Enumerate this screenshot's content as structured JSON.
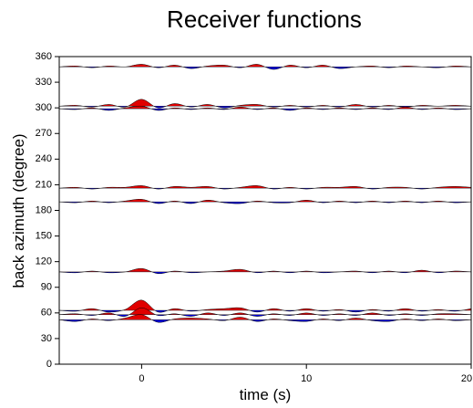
{
  "chart_data": {
    "type": "wiggle",
    "title": "Receiver functions",
    "xlabel": "time (s)",
    "ylabel": "back azimuth (degree)",
    "xlim": [
      -5,
      20
    ],
    "xticks": [
      0,
      10,
      20
    ],
    "ylim": [
      0,
      360
    ],
    "yticks": [
      0,
      30,
      60,
      90,
      120,
      150,
      180,
      210,
      240,
      270,
      300,
      330,
      360
    ],
    "positive_color": "#e00000",
    "negative_color": "#0000e0",
    "x": [
      -5,
      -4,
      -3,
      -2,
      -1,
      0,
      1,
      2,
      3,
      4,
      5,
      6,
      7,
      8,
      9,
      10,
      11,
      12,
      13,
      14,
      15,
      16,
      17,
      18,
      19,
      20
    ],
    "traces": [
      {
        "baz": 348,
        "values": [
          0,
          1,
          -1,
          1,
          0,
          3,
          -1,
          2,
          -2,
          1,
          2,
          -1,
          3,
          -3,
          2,
          -1,
          2,
          -2,
          0,
          1,
          -1,
          1,
          0,
          -1,
          1,
          0
        ]
      },
      {
        "baz": 302,
        "values": [
          0,
          1,
          -1,
          2,
          -1,
          8,
          -2,
          3,
          -1,
          2,
          -2,
          1,
          2,
          -1,
          1,
          -1,
          1,
          -1,
          2,
          -1,
          1,
          -1,
          1,
          0,
          1,
          0
        ]
      },
      {
        "baz": 299,
        "values": [
          0,
          -1,
          1,
          -2,
          1,
          3,
          -2,
          1,
          -1,
          1,
          -1,
          2,
          -1,
          1,
          -2,
          1,
          -1,
          1,
          -1,
          1,
          -1,
          2,
          -1,
          1,
          -1,
          0
        ]
      },
      {
        "baz": 206,
        "values": [
          0,
          1,
          -1,
          1,
          1,
          3,
          -1,
          2,
          1,
          2,
          -1,
          1,
          3,
          -1,
          1,
          -1,
          1,
          1,
          2,
          -1,
          1,
          1,
          -1,
          1,
          2,
          1
        ]
      },
      {
        "baz": 190,
        "values": [
          0,
          -1,
          1,
          -1,
          1,
          3,
          -2,
          1,
          -2,
          2,
          -1,
          -2,
          1,
          -1,
          -1,
          2,
          -1,
          1,
          -1,
          1,
          -1,
          1,
          -1,
          1,
          -1,
          0
        ]
      },
      {
        "baz": 108,
        "values": [
          0,
          -1,
          1,
          -1,
          0,
          4,
          -2,
          1,
          -1,
          0,
          1,
          3,
          -1,
          1,
          -1,
          1,
          -1,
          0,
          1,
          -1,
          1,
          -1,
          2,
          -1,
          1,
          0
        ]
      },
      {
        "baz": 63,
        "values": [
          0,
          -1,
          2,
          -2,
          1,
          12,
          -2,
          2,
          -1,
          1,
          2,
          3,
          -2,
          2,
          -1,
          2,
          -1,
          1,
          -2,
          1,
          -1,
          2,
          -1,
          1,
          -1,
          2
        ]
      },
      {
        "baz": 58,
        "values": [
          0,
          1,
          -1,
          2,
          -2,
          8,
          -1,
          1,
          -2,
          2,
          -1,
          2,
          -2,
          1,
          -1,
          2,
          -1,
          1,
          -1,
          2,
          -1,
          1,
          -1,
          1,
          1,
          0
        ]
      },
      {
        "baz": 52,
        "values": [
          0,
          -2,
          1,
          -1,
          2,
          6,
          -3,
          1,
          2,
          1,
          -1,
          3,
          -2,
          1,
          -1,
          -2,
          1,
          -1,
          2,
          -1,
          -2,
          1,
          -1,
          1,
          -1,
          0
        ]
      }
    ]
  }
}
